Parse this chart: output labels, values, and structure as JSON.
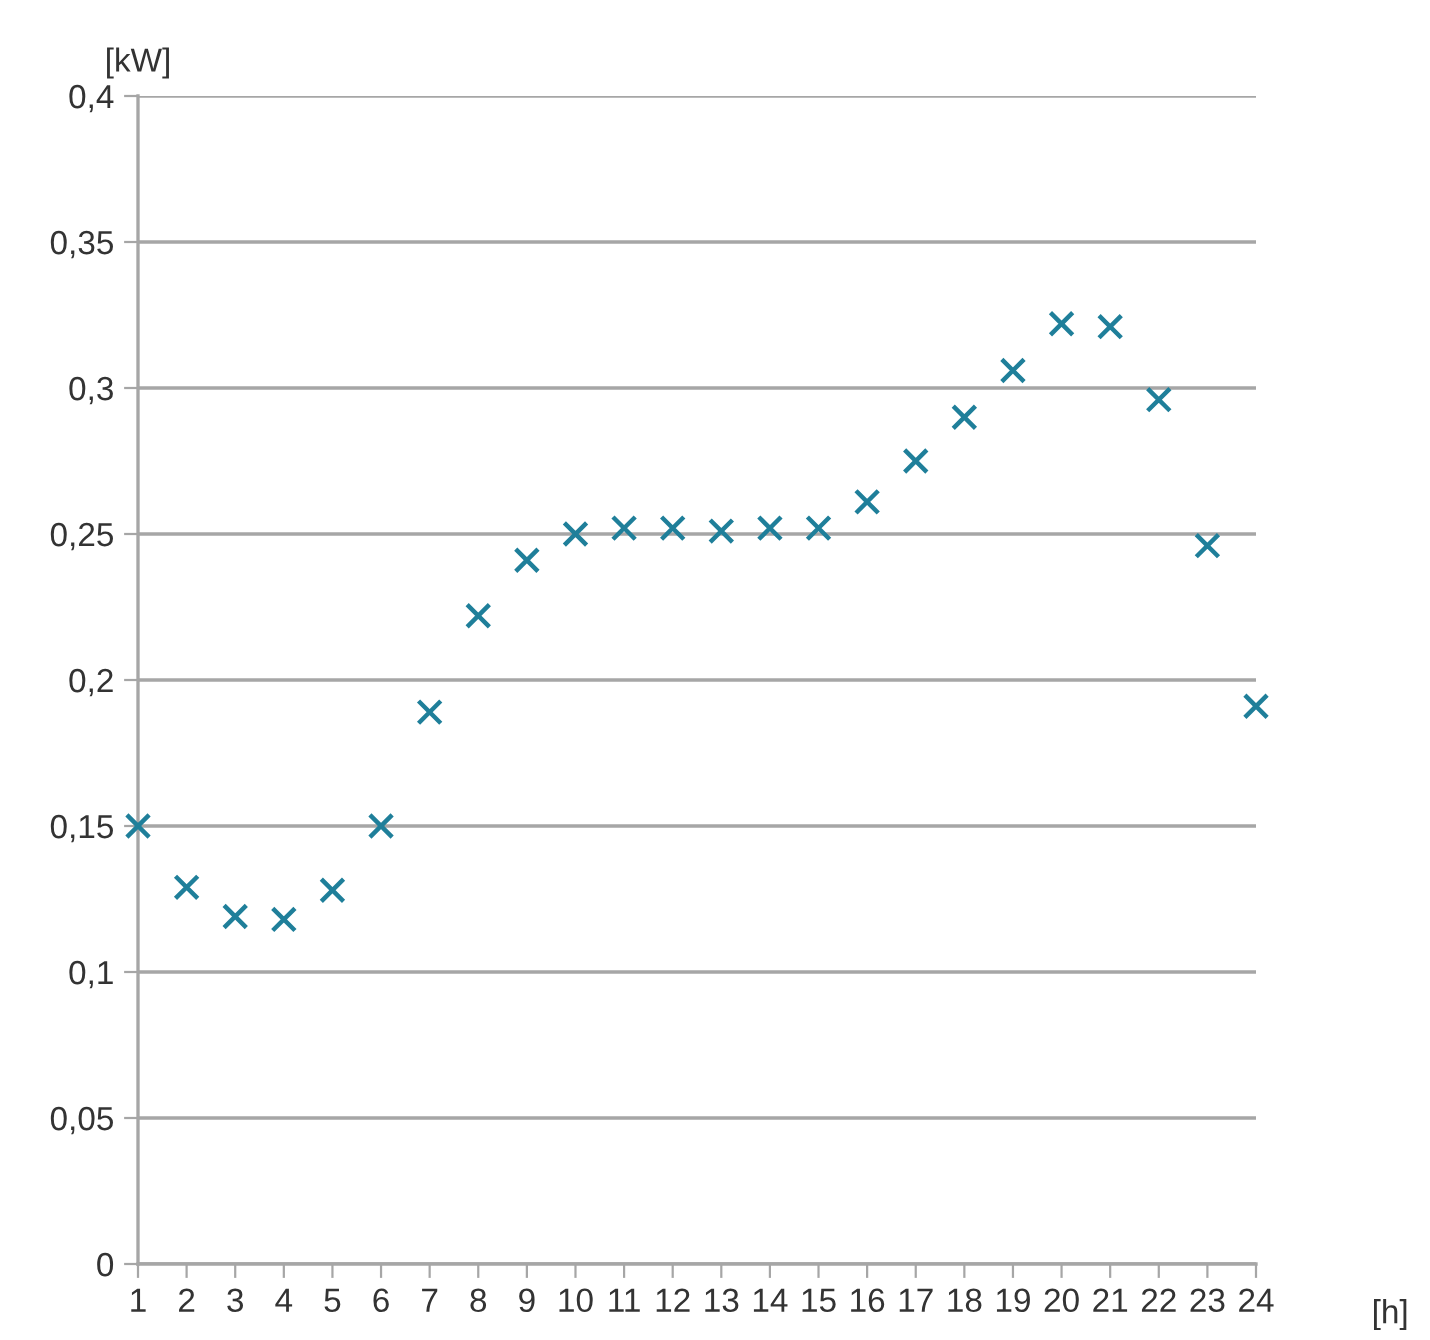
{
  "chart_data": {
    "type": "scatter",
    "xlabel": "[h]",
    "ylabel": "[kW]",
    "categories": [
      "1",
      "2",
      "3",
      "4",
      "5",
      "6",
      "7",
      "8",
      "9",
      "10",
      "11",
      "12",
      "13",
      "14",
      "15",
      "16",
      "17",
      "18",
      "19",
      "20",
      "21",
      "22",
      "23",
      "24"
    ],
    "series": [
      {
        "color": "#1f7f9a",
        "values": [
          0.15,
          0.129,
          0.119,
          0.118,
          0.128,
          0.15,
          0.189,
          0.222,
          0.241,
          0.25,
          0.252,
          0.252,
          0.251,
          0.252,
          0.252,
          0.261,
          0.275,
          0.29,
          0.306,
          0.322,
          0.321,
          0.296,
          0.246,
          0.191
        ]
      }
    ],
    "ylim": [
      0,
      0.4
    ],
    "yticks": [
      {
        "value": 0,
        "label": "0"
      },
      {
        "value": 0.05,
        "label": "0,05"
      },
      {
        "value": 0.1,
        "label": "0,1"
      },
      {
        "value": 0.15,
        "label": "0,15"
      },
      {
        "value": 0.2,
        "label": "0,2"
      },
      {
        "value": 0.25,
        "label": "0,25"
      },
      {
        "value": 0.3,
        "label": "0,3"
      },
      {
        "value": 0.35,
        "label": "0,35"
      },
      {
        "value": 0.4,
        "label": "0,4"
      }
    ],
    "grid": "y",
    "marker": "cross",
    "legend": false
  }
}
